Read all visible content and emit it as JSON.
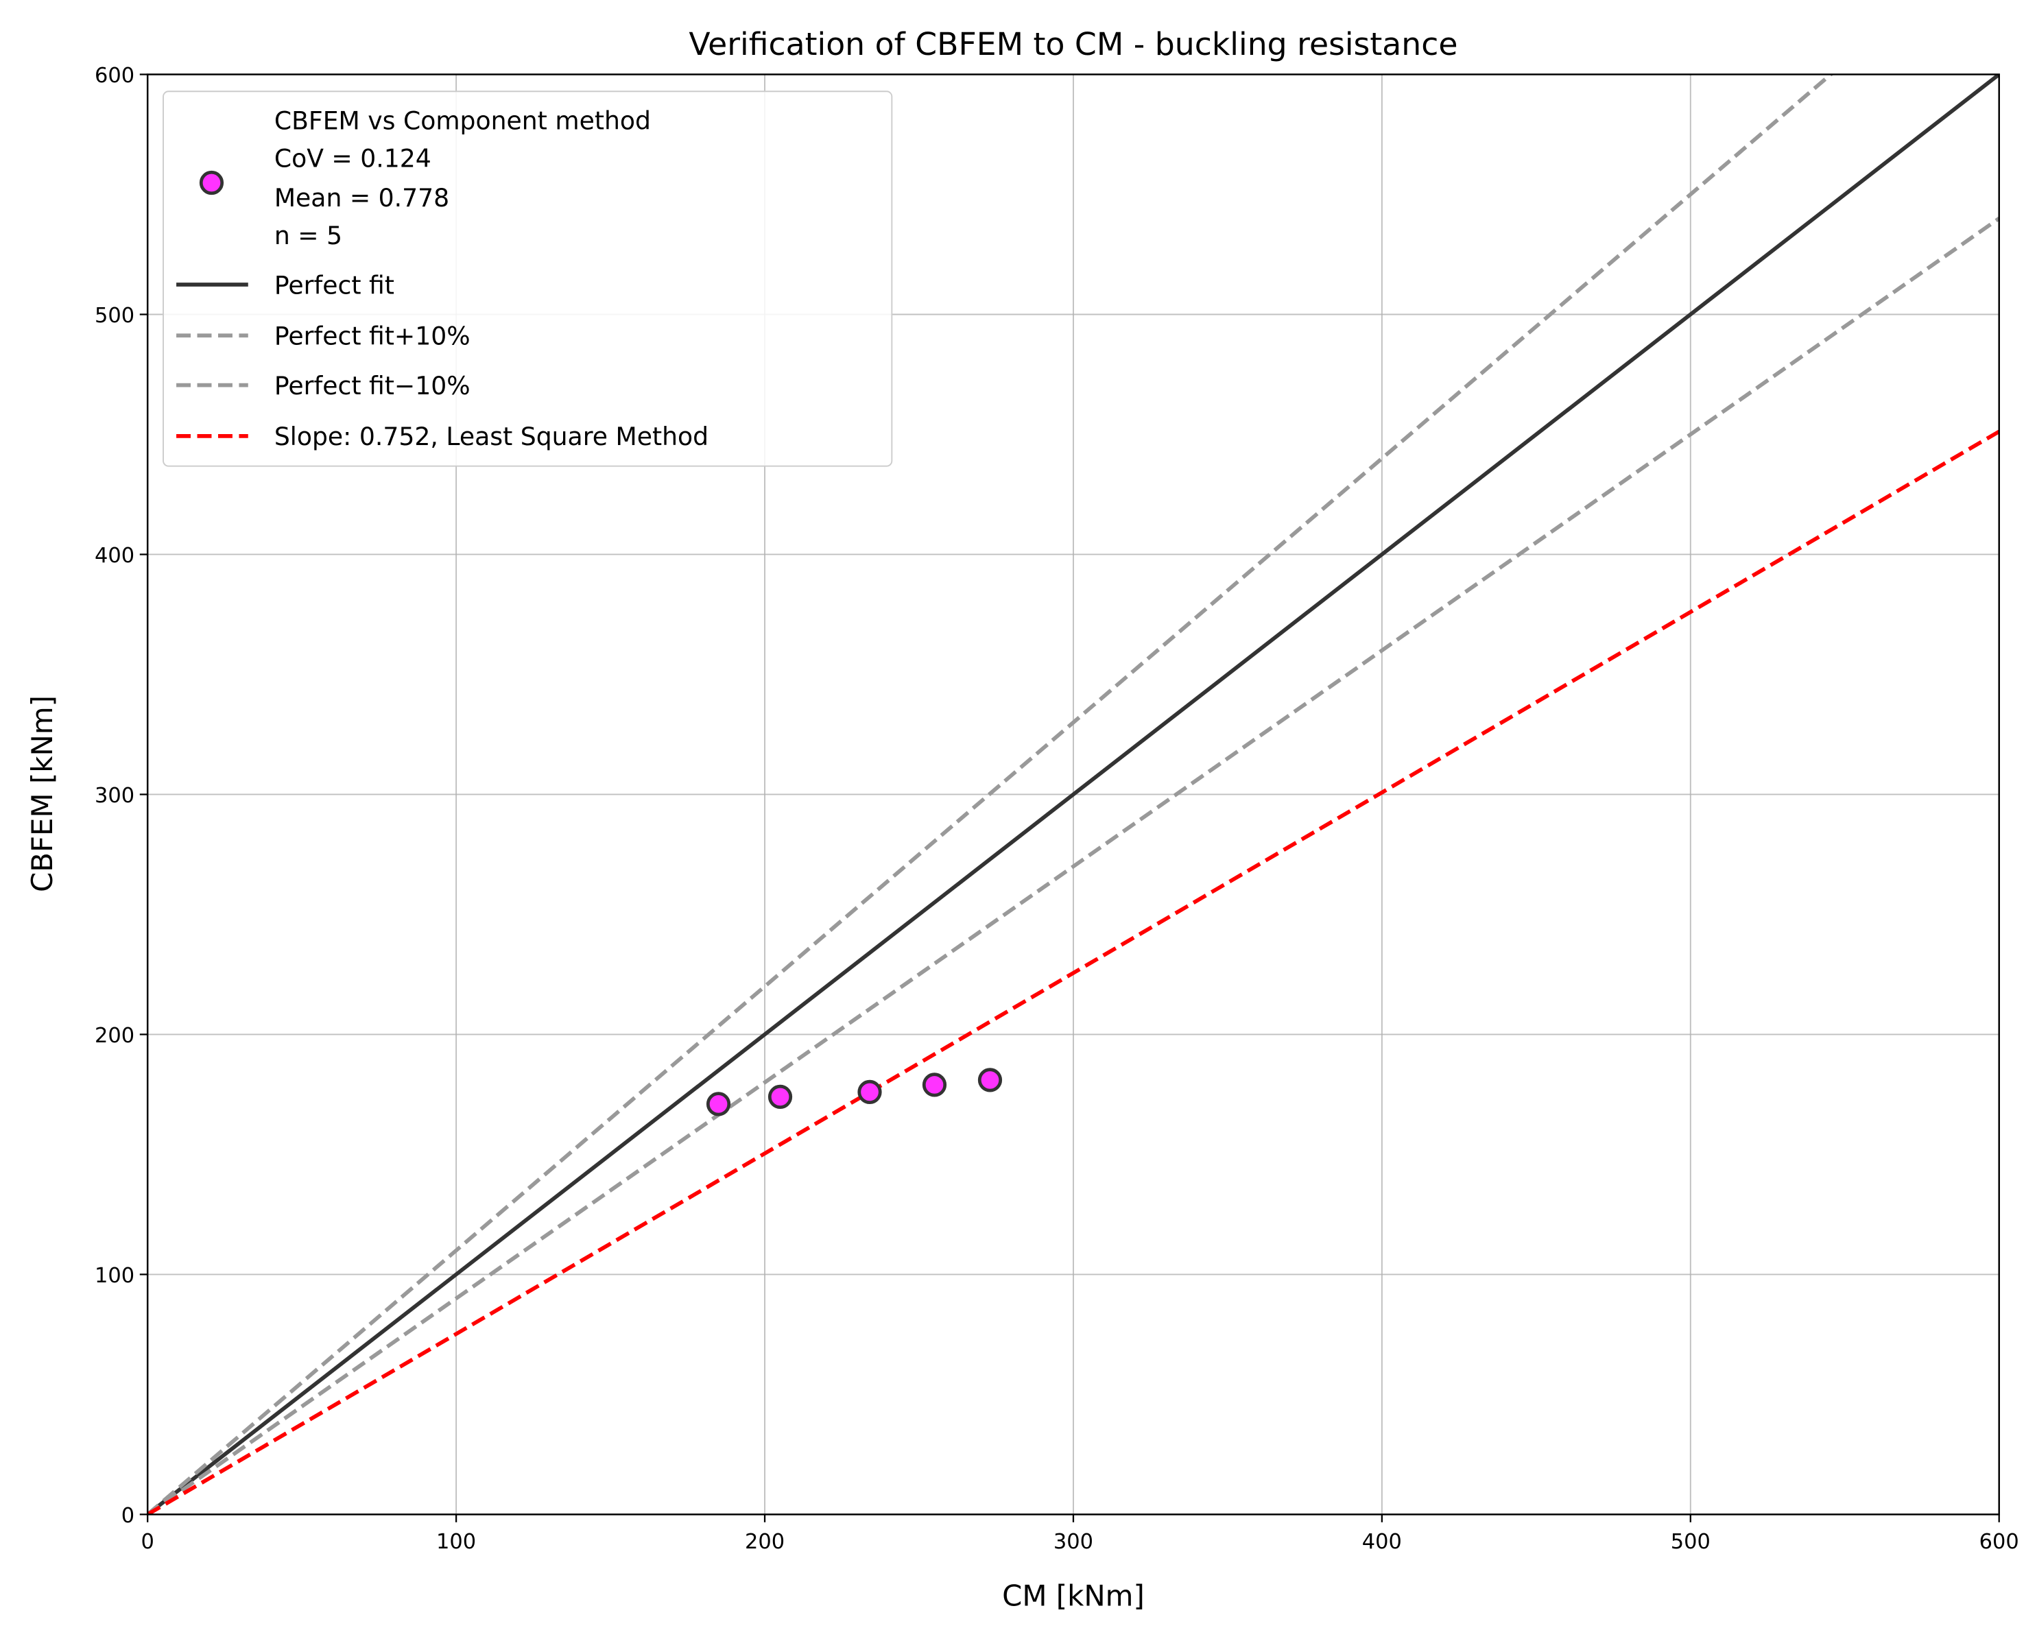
{
  "chart_data": {
    "type": "scatter",
    "title": "Verification of CBFEM to CM - buckling resistance",
    "xlabel": "CM [kNm]",
    "ylabel": "CBFEM [kNm]",
    "xlim": [
      0,
      600
    ],
    "ylim": [
      0,
      600
    ],
    "xticks": [
      0,
      100,
      200,
      300,
      400,
      500,
      600
    ],
    "yticks": [
      0,
      100,
      200,
      300,
      400,
      500,
      600
    ],
    "grid": true,
    "legend_placement": "top-left",
    "points": {
      "name": "CBFEM vs Component method",
      "legend_lines": [
        "CBFEM vs Component method",
        "CoV = 0.124",
        "Mean = 0.778",
        "n = 5"
      ],
      "x": [
        185,
        205,
        234,
        255,
        273
      ],
      "y": [
        171,
        174,
        176,
        179,
        181
      ],
      "color": "#ff33ff",
      "edge_color": "#333333"
    },
    "lines": [
      {
        "name": "Perfect fit",
        "slope": 1.0,
        "color": "#333333",
        "style": "solid"
      },
      {
        "name": "Perfect fit+10%",
        "slope": 1.1,
        "color": "#999999",
        "style": "dashed"
      },
      {
        "name": "Perfect fit−10%",
        "slope": 0.9,
        "color": "#999999",
        "style": "dashed"
      },
      {
        "name": "Slope: 0.752, Least Square Method",
        "slope": 0.752,
        "color": "#ff0000",
        "style": "dashed"
      }
    ]
  }
}
